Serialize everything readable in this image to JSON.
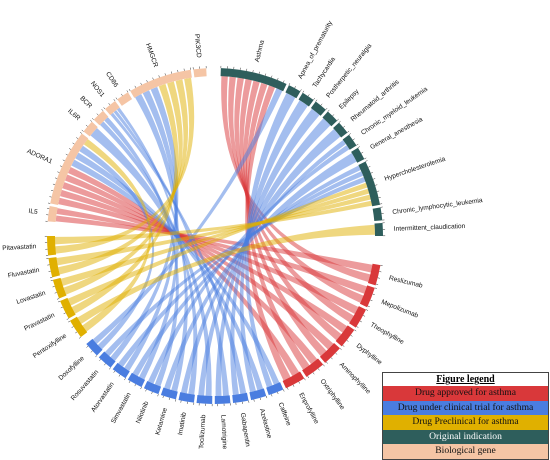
{
  "legend": {
    "title": "Figure legend",
    "entries": [
      {
        "label": "Drug approved for asthma",
        "color": "#d9383a"
      },
      {
        "label": "Drug under clinical trial for asthma",
        "color": "#4a7de0"
      },
      {
        "label": "Drug Preclinical for asthma",
        "color": "#e0b000"
      },
      {
        "label": "Original indication",
        "color": "#2e5e5c"
      },
      {
        "label": "Biological gene",
        "color": "#f5c5a5"
      }
    ]
  },
  "sectors": [
    {
      "label": "Asthma",
      "group": "indication"
    },
    {
      "label": "Apnea_of_prematurity",
      "group": "indication"
    },
    {
      "label": "Tachycardia",
      "group": "indication"
    },
    {
      "label": "Postherpetic_neuralgia",
      "group": "indication"
    },
    {
      "label": "Epilepsy",
      "group": "indication"
    },
    {
      "label": "Rheumatoid_arthritis",
      "group": "indication"
    },
    {
      "label": "Chronic_myeloid_leukemia",
      "group": "indication"
    },
    {
      "label": "General_anesthesia",
      "group": "indication"
    },
    {
      "label": "Hypercholesterolemia",
      "group": "indication"
    },
    {
      "label": "Chronic_lymphocytic_leukemia",
      "group": "indication"
    },
    {
      "label": "Intermittent_claudication",
      "group": "indication"
    },
    {
      "label": "Reslizumab",
      "group": "approved"
    },
    {
      "label": "Mepolizumab",
      "group": "approved"
    },
    {
      "label": "Theophylline",
      "group": "approved"
    },
    {
      "label": "Dyphylline",
      "group": "approved"
    },
    {
      "label": "Aminophylline",
      "group": "approved"
    },
    {
      "label": "Oxtriphylline",
      "group": "approved"
    },
    {
      "label": "Enprofylline",
      "group": "approved"
    },
    {
      "label": "Caffeine",
      "group": "trial"
    },
    {
      "label": "Azelastine",
      "group": "trial"
    },
    {
      "label": "Gabapentin",
      "group": "trial"
    },
    {
      "label": "Lamotrigine",
      "group": "trial"
    },
    {
      "label": "Tocilizumab",
      "group": "trial"
    },
    {
      "label": "Imatinib",
      "group": "trial"
    },
    {
      "label": "Ketamine",
      "group": "trial"
    },
    {
      "label": "Nilotinib",
      "group": "trial"
    },
    {
      "label": "Simvastatin",
      "group": "trial"
    },
    {
      "label": "Atorvastatin",
      "group": "trial"
    },
    {
      "label": "Rosuvastatin",
      "group": "trial"
    },
    {
      "label": "Doxofylline",
      "group": "trial"
    },
    {
      "label": "Pentoxifylline",
      "group": "preclinical"
    },
    {
      "label": "Pravastatin",
      "group": "preclinical"
    },
    {
      "label": "Lovastatin",
      "group": "preclinical"
    },
    {
      "label": "Fluvastatin",
      "group": "preclinical"
    },
    {
      "label": "Pitavastatin",
      "group": "preclinical"
    },
    {
      "label": "IL5",
      "group": "gene"
    },
    {
      "label": "ADORA1",
      "group": "gene"
    },
    {
      "label": "IL6R",
      "group": "gene"
    },
    {
      "label": "BCR",
      "group": "gene"
    },
    {
      "label": "NOS1",
      "group": "gene"
    },
    {
      "label": "CD86",
      "group": "gene"
    },
    {
      "label": "HMGCR",
      "group": "gene"
    },
    {
      "label": "PIK3CD",
      "group": "gene"
    }
  ]
}
